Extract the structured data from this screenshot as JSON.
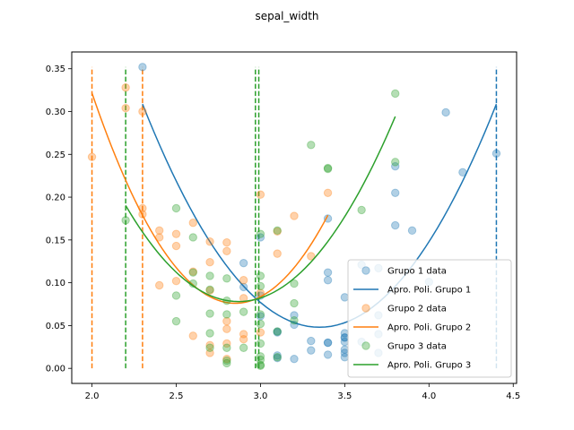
{
  "chart_data": {
    "type": "scatter",
    "title": "sepal_width",
    "xlim": [
      1.88,
      4.52
    ],
    "ylim": [
      -0.0176,
      0.3696
    ],
    "xticks": [
      2.0,
      2.5,
      3.0,
      3.5,
      4.0,
      4.5
    ],
    "xtick_labels": [
      "2.0",
      "2.5",
      "3.0",
      "3.5",
      "4.0",
      "4.5"
    ],
    "yticks": [
      0.0,
      0.05,
      0.1,
      0.15,
      0.2,
      0.25,
      0.3,
      0.35
    ],
    "ytick_labels": [
      "0.00",
      "0.05",
      "0.10",
      "0.15",
      "0.20",
      "0.25",
      "0.30",
      "0.35"
    ],
    "grid": false,
    "legend_position": "bottom-right",
    "series": [
      {
        "name": "Grupo 1 data",
        "kind": "scatter",
        "color": "#1f77b4",
        "points": [
          [
            2.3,
            0.352
          ],
          [
            2.9,
            0.123
          ],
          [
            2.9,
            0.095
          ],
          [
            3.0,
            0.153
          ],
          [
            3.0,
            0.085
          ],
          [
            3.0,
            0.061
          ],
          [
            3.1,
            0.043
          ],
          [
            3.1,
            0.012
          ],
          [
            3.1,
            0.042
          ],
          [
            3.1,
            0.015
          ],
          [
            3.2,
            0.062
          ],
          [
            3.2,
            0.011
          ],
          [
            3.2,
            0.051
          ],
          [
            3.3,
            0.032
          ],
          [
            3.3,
            0.021
          ],
          [
            3.4,
            0.175
          ],
          [
            3.4,
            0.112
          ],
          [
            3.4,
            0.103
          ],
          [
            3.4,
            0.03
          ],
          [
            3.4,
            0.016
          ],
          [
            3.4,
            0.03
          ],
          [
            3.5,
            0.083
          ],
          [
            3.5,
            0.041
          ],
          [
            3.5,
            0.036
          ],
          [
            3.5,
            0.031
          ],
          [
            3.5,
            0.022
          ],
          [
            3.5,
            0.018
          ],
          [
            3.5,
            0.013
          ],
          [
            3.5,
            0.036
          ],
          [
            3.6,
            0.121
          ],
          [
            3.6,
            0.031
          ],
          [
            3.7,
            0.117
          ],
          [
            3.7,
            0.062
          ],
          [
            3.7,
            0.04
          ],
          [
            3.7,
            0.018
          ],
          [
            3.8,
            0.236
          ],
          [
            3.8,
            0.205
          ],
          [
            3.8,
            0.167
          ],
          [
            3.9,
            0.161
          ],
          [
            4.0,
            0.101
          ],
          [
            4.1,
            0.299
          ],
          [
            4.2,
            0.229
          ],
          [
            4.4,
            0.251
          ]
        ]
      },
      {
        "name": "Apro. Poli. Grupo 1",
        "kind": "line",
        "color": "#1f77b4",
        "curve": {
          "x_from": 2.3,
          "x_to": 4.4,
          "vertex_x": 3.35,
          "vertex_y": 0.048,
          "a": 0.2365
        }
      },
      {
        "name": "Grupo 2 data",
        "kind": "scatter",
        "color": "#ff7f0e",
        "points": [
          [
            2.0,
            0.247
          ],
          [
            2.2,
            0.328
          ],
          [
            2.2,
            0.304
          ],
          [
            2.3,
            0.3
          ],
          [
            2.3,
            0.187
          ],
          [
            2.3,
            0.18
          ],
          [
            2.4,
            0.161
          ],
          [
            2.4,
            0.097
          ],
          [
            2.4,
            0.153
          ],
          [
            2.5,
            0.157
          ],
          [
            2.5,
            0.143
          ],
          [
            2.5,
            0.102
          ],
          [
            2.6,
            0.17
          ],
          [
            2.6,
            0.113
          ],
          [
            2.6,
            0.038
          ],
          [
            2.7,
            0.148
          ],
          [
            2.7,
            0.124
          ],
          [
            2.7,
            0.091
          ],
          [
            2.7,
            0.027
          ],
          [
            2.7,
            0.018
          ],
          [
            2.8,
            0.147
          ],
          [
            2.8,
            0.137
          ],
          [
            2.8,
            0.055
          ],
          [
            2.8,
            0.046
          ],
          [
            2.8,
            0.029
          ],
          [
            2.8,
            0.011
          ],
          [
            2.9,
            0.103
          ],
          [
            2.9,
            0.082
          ],
          [
            2.9,
            0.04
          ],
          [
            2.9,
            0.034
          ],
          [
            3.0,
            0.203
          ],
          [
            3.0,
            0.088
          ],
          [
            3.0,
            0.042
          ],
          [
            3.1,
            0.16
          ],
          [
            3.1,
            0.134
          ],
          [
            3.2,
            0.178
          ],
          [
            3.3,
            0.131
          ],
          [
            3.4,
            0.205
          ]
        ]
      },
      {
        "name": "Apro. Poli. Grupo 2",
        "kind": "line",
        "color": "#ff7f0e",
        "curve": {
          "x_from": 2.0,
          "x_to": 3.4,
          "vertex_x": 2.85,
          "vertex_y": 0.076,
          "a": 0.34
        }
      },
      {
        "name": "Grupo 3 data",
        "kind": "scatter",
        "color": "#2ca02c",
        "points": [
          [
            2.2,
            0.173
          ],
          [
            2.5,
            0.187
          ],
          [
            2.5,
            0.085
          ],
          [
            2.5,
            0.055
          ],
          [
            2.6,
            0.153
          ],
          [
            2.6,
            0.112
          ],
          [
            2.6,
            0.099
          ],
          [
            2.7,
            0.108
          ],
          [
            2.7,
            0.092
          ],
          [
            2.7,
            0.064
          ],
          [
            2.7,
            0.041
          ],
          [
            2.7,
            0.024
          ],
          [
            2.8,
            0.105
          ],
          [
            2.8,
            0.079
          ],
          [
            2.8,
            0.063
          ],
          [
            2.8,
            0.024
          ],
          [
            2.8,
            0.009
          ],
          [
            2.8,
            0.006
          ],
          [
            2.9,
            0.066
          ],
          [
            2.9,
            0.024
          ],
          [
            3.0,
            0.157
          ],
          [
            3.0,
            0.108
          ],
          [
            3.0,
            0.096
          ],
          [
            3.0,
            0.063
          ],
          [
            3.0,
            0.052
          ],
          [
            3.0,
            0.029
          ],
          [
            3.0,
            0.014
          ],
          [
            3.0,
            0.01
          ],
          [
            3.0,
            0.004
          ],
          [
            3.0,
            0.003
          ],
          [
            3.1,
            0.161
          ],
          [
            3.1,
            0.043
          ],
          [
            3.1,
            0.013
          ],
          [
            3.2,
            0.099
          ],
          [
            3.2,
            0.076
          ],
          [
            3.2,
            0.056
          ],
          [
            3.3,
            0.261
          ],
          [
            3.4,
            0.234
          ],
          [
            3.4,
            0.233
          ],
          [
            3.6,
            0.185
          ],
          [
            3.8,
            0.321
          ],
          [
            3.8,
            0.241
          ]
        ]
      },
      {
        "name": "Apro. Poli. Grupo 3",
        "kind": "line",
        "color": "#2ca02c",
        "curve": {
          "x_from": 2.2,
          "x_to": 3.8,
          "vertex_x": 2.87,
          "vertex_y": 0.078,
          "a": 0.25
        }
      }
    ],
    "vlines": [
      {
        "x": 2.2,
        "color": "#2ca02c"
      },
      {
        "x": 2.97,
        "color": "#2ca02c"
      },
      {
        "x": 2.99,
        "color": "#2ca02c"
      },
      {
        "x": 2.0,
        "color": "#ff7f0e"
      },
      {
        "x": 2.3,
        "color": "#ff7f0e"
      },
      {
        "x": 4.4,
        "color": "#1f77b4"
      }
    ],
    "vline_range": [
      0.0,
      0.352
    ],
    "legend": [
      {
        "label": "Grupo 1 data",
        "kind": "scatter",
        "color": "#1f77b4"
      },
      {
        "label": "Apro. Poli. Grupo 1",
        "kind": "line",
        "color": "#1f77b4"
      },
      {
        "label": "Grupo 2 data",
        "kind": "scatter",
        "color": "#ff7f0e"
      },
      {
        "label": "Apro. Poli. Grupo 2",
        "kind": "line",
        "color": "#ff7f0e"
      },
      {
        "label": "Grupo 3 data",
        "kind": "scatter",
        "color": "#2ca02c"
      },
      {
        "label": "Apro. Poli. Grupo 3",
        "kind": "line",
        "color": "#2ca02c"
      }
    ]
  }
}
